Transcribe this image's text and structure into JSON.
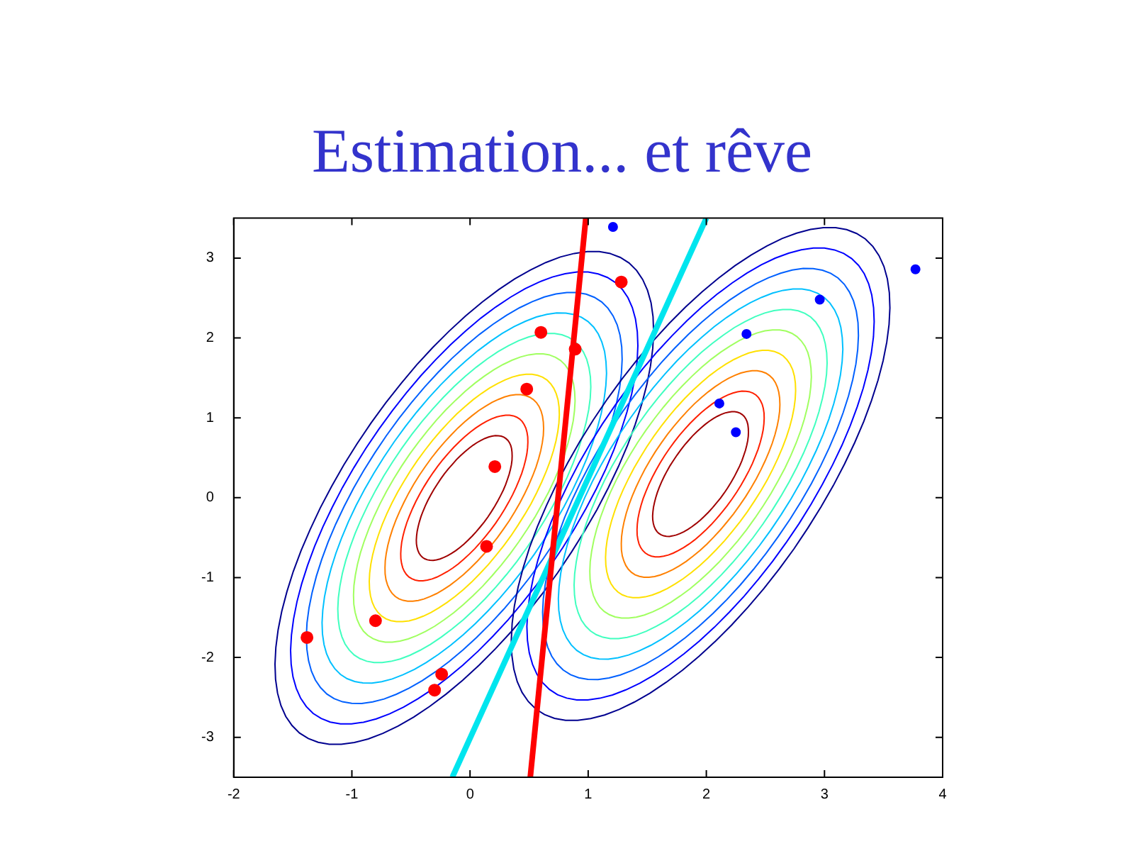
{
  "chart_data": {
    "type": "scatter",
    "title": "Estimation... et rêve",
    "series": [
      {
        "type": "scatter",
        "color": "#ff0000",
        "x": [
          -1.38,
          -0.8,
          -0.3,
          -0.24,
          0.14,
          0.21,
          0.48,
          0.6,
          0.89,
          1.28
        ],
        "values": [
          -1.75,
          -1.54,
          -2.41,
          -2.21,
          -0.61,
          0.39,
          1.36,
          2.07,
          1.86,
          2.7
        ]
      },
      {
        "type": "scatter",
        "color": "#0000ff",
        "x": [
          1.21,
          3.77,
          2.96,
          2.34,
          2.11,
          2.25
        ],
        "values": [
          3.39,
          2.86,
          2.48,
          2.05,
          1.18,
          0.82
        ]
      },
      {
        "type": "line",
        "color": "#ff0000",
        "marker": "none",
        "x": [
          0.51,
          0.98
        ],
        "values": [
          -3.5,
          3.5
        ]
      },
      {
        "type": "line",
        "color": "#00e5ee",
        "marker": "none",
        "x": [
          -0.15,
          2.0
        ],
        "values": [
          -3.5,
          3.5
        ]
      }
    ],
    "xlim": [
      -2,
      4
    ],
    "xticks": [
      -2,
      -1,
      0,
      1,
      2,
      3,
      4
    ],
    "ylim": [
      -3.5,
      3.5
    ],
    "yticks": [
      -3,
      -2,
      -1,
      0,
      1,
      2,
      3
    ],
    "grid": false,
    "legend": false,
    "marker": "circle",
    "line_style": "solid"
  }
}
